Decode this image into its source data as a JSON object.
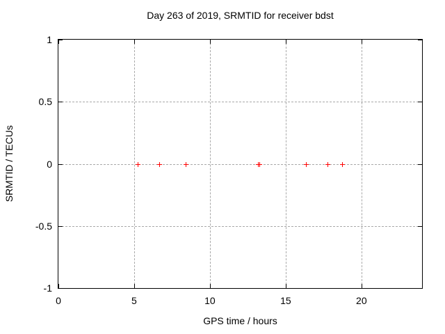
{
  "chart_data": {
    "type": "scatter",
    "title": "Day 263 of 2019, SRMTID for receiver bdst",
    "xlabel": "GPS time / hours",
    "ylabel": "SRMTID / TECUs",
    "xlim": [
      0,
      24
    ],
    "ylim": [
      -1,
      1
    ],
    "x_ticks": [
      0,
      5,
      10,
      15,
      20
    ],
    "y_ticks": [
      -1,
      -0.5,
      0,
      0.5,
      1
    ],
    "grid": true,
    "legend_position": "none",
    "colors": {
      "marker": "#ff0000",
      "grid": "#a8a8a8",
      "border": "#000000",
      "background": "#ffffff"
    },
    "series": [
      {
        "name": "SRMTID",
        "marker": "plus",
        "color": "#ff0000",
        "x": [
          5.25,
          6.65,
          8.4,
          13.15,
          13.25,
          16.35,
          17.75,
          18.7
        ],
        "y": [
          0,
          0,
          0,
          0,
          0,
          0,
          0,
          0
        ]
      }
    ]
  }
}
